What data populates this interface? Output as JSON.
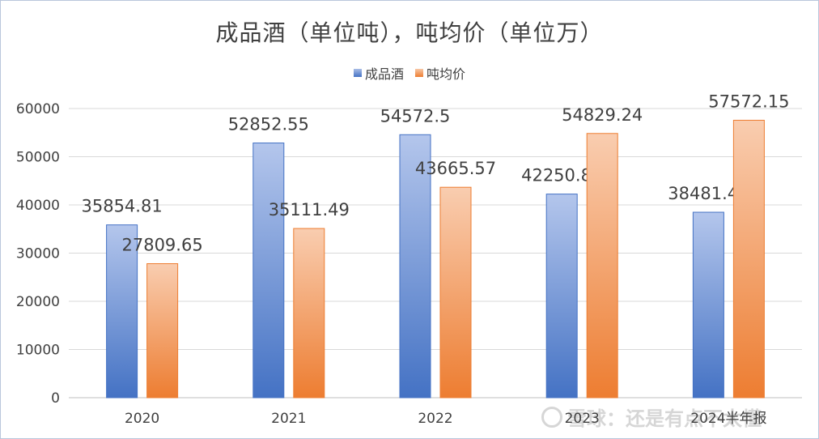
{
  "chart_data": {
    "type": "bar",
    "title": "成品酒（单位吨），吨均价（单位万）",
    "categories": [
      "2020",
      "2021",
      "2022",
      "2023",
      "2024半年报"
    ],
    "series": [
      {
        "name": "成品酒",
        "values": [
          35854.81,
          52852.55,
          54572.5,
          42250.87,
          38481.45
        ],
        "labels": [
          "35854.81",
          "52852.55",
          "54572.5",
          "42250.87",
          "38481.45"
        ],
        "color": "#4472C4"
      },
      {
        "name": "吨均价",
        "values": [
          27809.65,
          35111.49,
          43665.57,
          54829.24,
          57572.15
        ],
        "labels": [
          "27809.65",
          "35111.49",
          "43665.57",
          "54829.24",
          "57572.15"
        ],
        "color": "#ED7D31"
      }
    ],
    "yticks": [
      "0",
      "10000",
      "20000",
      "30000",
      "40000",
      "50000",
      "60000"
    ],
    "ylim": [
      0,
      60000
    ],
    "xlabel": "",
    "ylabel": "",
    "grid": true,
    "legend": "top-center"
  },
  "watermark": {
    "text": "雪球：还是有点不太懂"
  }
}
